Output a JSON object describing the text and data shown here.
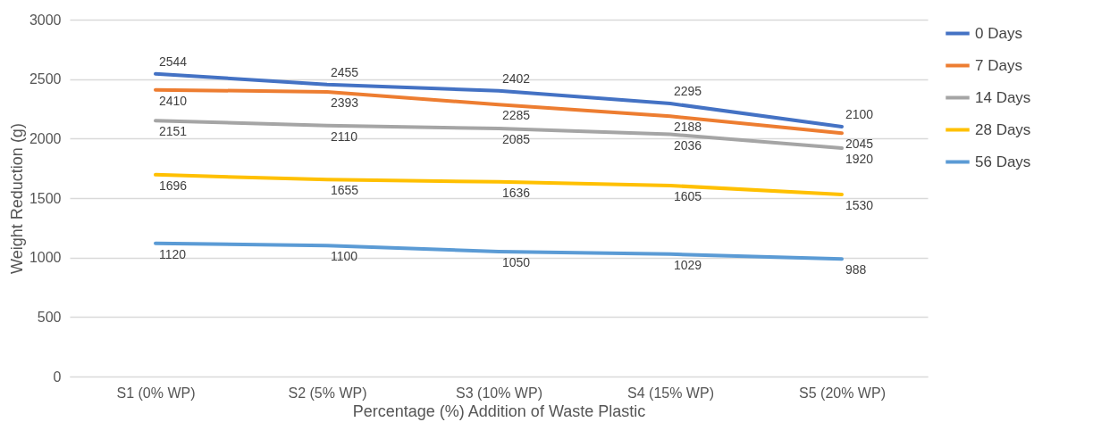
{
  "chart_data": {
    "type": "line",
    "xlabel": "Percentage (%) Addition of Waste Plastic",
    "ylabel": "Weight Reduction (g)",
    "categories": [
      "S1 (0% WP)",
      "S2 (5% WP)",
      "S3 (10% WP)",
      "S4 (15% WP)",
      "S5 (20% WP)"
    ],
    "series": [
      {
        "name": "0 Days",
        "color": "#4472c4",
        "values": [
          2544,
          2455,
          2402,
          2295,
          2100
        ]
      },
      {
        "name": "7 Days",
        "color": "#ed7d31",
        "values": [
          2410,
          2393,
          2285,
          2188,
          2045
        ]
      },
      {
        "name": "14 Days",
        "color": "#a5a5a5",
        "values": [
          2151,
          2110,
          2085,
          2036,
          1920
        ]
      },
      {
        "name": "28 Days",
        "color": "#ffc000",
        "values": [
          1696,
          1655,
          1636,
          1605,
          1530
        ]
      },
      {
        "name": "56 Days",
        "color": "#5b9bd5",
        "values": [
          1120,
          1100,
          1050,
          1029,
          988
        ]
      }
    ],
    "ylim": [
      0,
      3000
    ],
    "yticks": [
      0,
      500,
      1000,
      1500,
      2000,
      2500,
      3000
    ],
    "grid": "y",
    "legend": "right",
    "data_labels": true
  }
}
